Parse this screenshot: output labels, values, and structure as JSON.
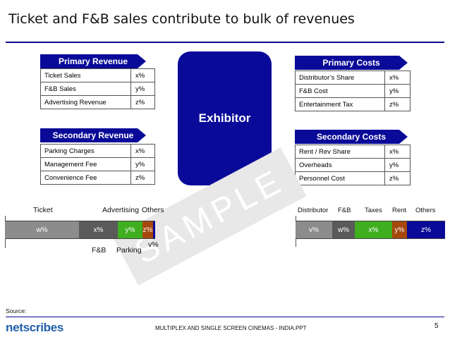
{
  "title": "Ticket and F&B sales contribute to bulk of revenues",
  "center_label": "Exhibitor",
  "primary_revenue": {
    "header": "Primary Revenue",
    "rows": [
      {
        "label": "Ticket Sales",
        "value": "x%"
      },
      {
        "label": "F&B Sales",
        "value": "y%"
      },
      {
        "label": "Advertising Revenue",
        "value": "z%"
      }
    ]
  },
  "secondary_revenue": {
    "header": "Secondary Revenue",
    "rows": [
      {
        "label": "Parking Charges",
        "value": "x%"
      },
      {
        "label": "Management Fee",
        "value": "y%"
      },
      {
        "label": "Convenience Fee",
        "value": "z%"
      }
    ]
  },
  "primary_costs": {
    "header": "Primary Costs",
    "rows": [
      {
        "label": "Distributor’s Share",
        "value": "x%"
      },
      {
        "label": "F&B Cost",
        "value": "y%"
      },
      {
        "label": "Entertainment Tax",
        "value": "z%"
      }
    ]
  },
  "secondary_costs": {
    "header": "Secondary Costs",
    "rows": [
      {
        "label": "Rent / Rev Share",
        "value": "x%"
      },
      {
        "label": "Overheads",
        "value": "y%"
      },
      {
        "label": "Personnel Cost",
        "value": "z%"
      }
    ]
  },
  "revenue_bar": {
    "top_labels": {
      "ticket": "Ticket",
      "advertising": "Advertising",
      "others": "Others"
    },
    "bottom_labels": {
      "fnb": "F&B",
      "parking": "Parking",
      "v": "v%"
    },
    "segments": [
      {
        "name": "ticket",
        "label": "w%",
        "color": "#8c8c8c"
      },
      {
        "name": "fnb",
        "label": "x%",
        "color": "#5a5a5a"
      },
      {
        "name": "parking",
        "label": "y%",
        "color": "#3fae1f"
      },
      {
        "name": "advertising",
        "label": "z%",
        "color": "#a6480e"
      },
      {
        "name": "others",
        "label": "",
        "color": "#0a0a99"
      }
    ]
  },
  "cost_bar": {
    "top_labels": {
      "distributor": "Distributor",
      "fnb": "F&B",
      "taxes": "Taxes",
      "rent": "Rent",
      "others": "Others"
    },
    "segments": [
      {
        "name": "distributor",
        "label": "v%",
        "color": "#8c8c8c"
      },
      {
        "name": "fnb",
        "label": "w%",
        "color": "#5a5a5a"
      },
      {
        "name": "taxes",
        "label": "x%",
        "color": "#3fae1f"
      },
      {
        "name": "rent",
        "label": "y%",
        "color": "#a6480e"
      },
      {
        "name": "others",
        "label": "z%",
        "color": "#0a0a99"
      }
    ]
  },
  "watermark": "SAMPLE",
  "footer": {
    "source": "Source:",
    "logo": "netscribes",
    "doc_title": "MULTIPLEX AND SINGLE SCREEN CINEMAS - INDIA.PPT",
    "page": "5"
  }
}
